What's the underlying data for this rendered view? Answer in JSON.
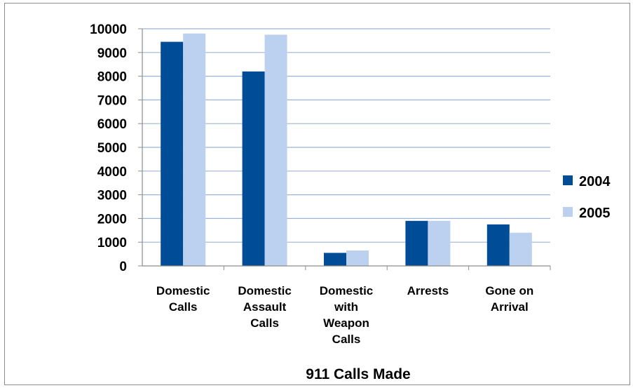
{
  "chart_data": {
    "type": "bar",
    "title": "911 Calls Made",
    "xlabel": "",
    "ylabel": "",
    "categories": [
      [
        "Domestic",
        "Calls"
      ],
      [
        "Domestic",
        "Assault",
        "Calls"
      ],
      [
        "Domestic",
        "with",
        "Weapon",
        "Calls"
      ],
      [
        "Arrests"
      ],
      [
        "Gone on",
        "Arrival"
      ]
    ],
    "series": [
      {
        "name": "2004",
        "color": "#004C97",
        "values": [
          9450,
          8200,
          550,
          1900,
          1750
        ]
      },
      {
        "name": "2005",
        "color": "#BCD0F0",
        "values": [
          9800,
          9750,
          650,
          1900,
          1400
        ]
      }
    ],
    "ylim": [
      0,
      10000
    ],
    "yticks": [
      "0",
      "1000",
      "2000",
      "3000",
      "4000",
      "5000",
      "6000",
      "7000",
      "8000",
      "9000",
      "10000"
    ],
    "grid": true,
    "gridColor": "#9DB5D6",
    "legend": "right"
  }
}
